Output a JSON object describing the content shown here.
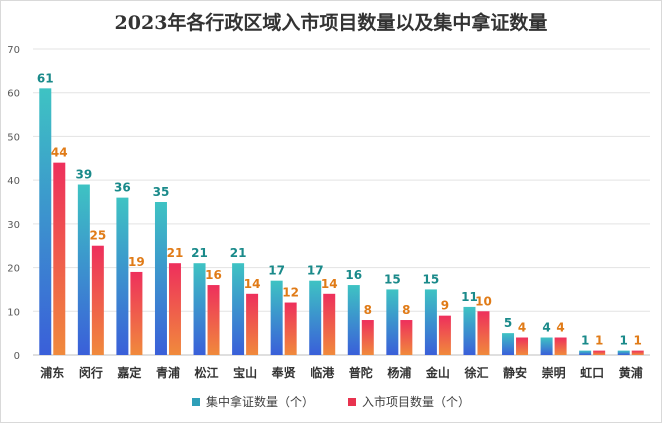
{
  "chart_data": {
    "type": "bar",
    "title": "2023年各行政区域入市项目数量以及集中拿证数量",
    "categories": [
      "浦东",
      "闵行",
      "嘉定",
      "青浦",
      "松江",
      "宝山",
      "奉贤",
      "临港",
      "普陀",
      "杨浦",
      "金山",
      "徐汇",
      "静安",
      "崇明",
      "虹口",
      "黄浦"
    ],
    "series": [
      {
        "name": "集中拿证数量（个）",
        "values": [
          61,
          39,
          36,
          35,
          21,
          21,
          17,
          17,
          16,
          15,
          15,
          11,
          5,
          4,
          1,
          1
        ],
        "color": "#2e9fb8",
        "label_color": "#1a8a8a"
      },
      {
        "name": "入市项目数量（个）",
        "values": [
          44,
          25,
          19,
          21,
          16,
          14,
          12,
          14,
          8,
          8,
          9,
          10,
          4,
          4,
          1,
          1
        ],
        "color": "#e8334f",
        "label_color": "#e07b17"
      }
    ],
    "y_ticks": [
      "0",
      "10",
      "20",
      "30",
      "40",
      "50",
      "60",
      "70"
    ],
    "ylim": [
      0,
      70
    ],
    "grid": true,
    "legend_position": "bottom",
    "xlabel": "",
    "ylabel": ""
  }
}
